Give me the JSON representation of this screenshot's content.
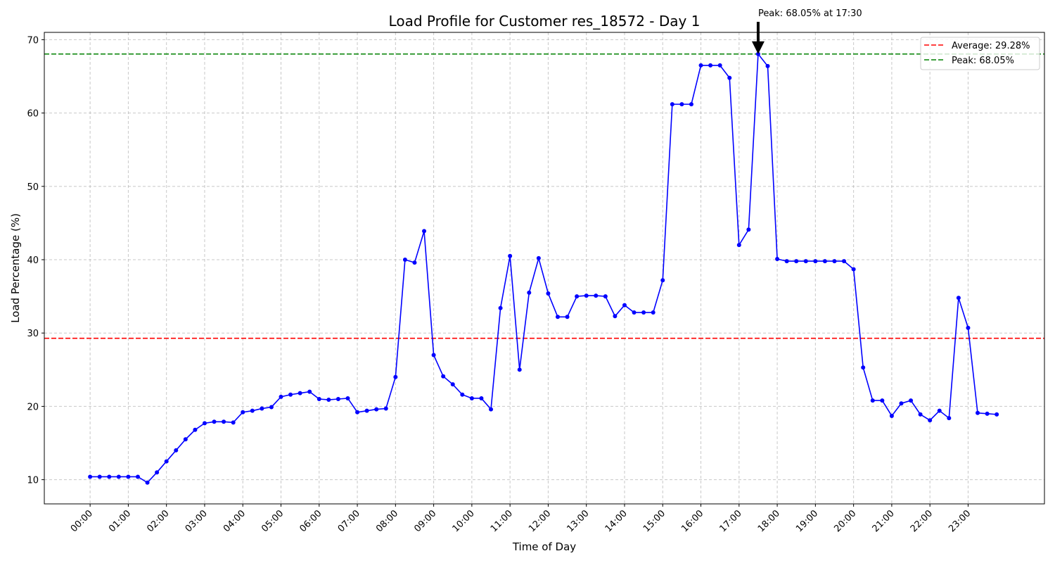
{
  "chart_data": {
    "type": "line",
    "title": "Load Profile for Customer res_18572 - Day 1",
    "xlabel": "Time of Day",
    "ylabel": "Load Percentage (%)",
    "ylim": [
      6.7,
      71.0
    ],
    "xlim": [
      -1.2,
      25.0
    ],
    "grid": true,
    "legend_position": "top-right",
    "yticks": [
      10,
      20,
      30,
      40,
      50,
      60,
      70
    ],
    "xticks": [
      "00:00",
      "01:00",
      "02:00",
      "03:00",
      "04:00",
      "05:00",
      "06:00",
      "07:00",
      "08:00",
      "09:00",
      "10:00",
      "11:00",
      "12:00",
      "13:00",
      "14:00",
      "15:00",
      "16:00",
      "17:00",
      "18:00",
      "19:00",
      "20:00",
      "21:00",
      "22:00",
      "23:00"
    ],
    "series": [
      {
        "name": "",
        "color": "#0000ff",
        "x_step_minutes": 15,
        "values": [
          10.4,
          10.4,
          10.4,
          10.4,
          10.4,
          10.4,
          9.6,
          11.0,
          12.5,
          14.0,
          15.5,
          16.8,
          17.7,
          17.9,
          17.9,
          17.8,
          19.2,
          19.4,
          19.7,
          19.9,
          21.3,
          21.6,
          21.8,
          22.0,
          21.0,
          20.9,
          21.0,
          21.1,
          19.2,
          19.4,
          19.6,
          19.7,
          24.0,
          40.0,
          39.6,
          43.9,
          27.0,
          24.1,
          23.0,
          21.6,
          21.1,
          21.1,
          19.6,
          33.4,
          40.5,
          25.0,
          35.5,
          40.2,
          35.4,
          32.2,
          32.2,
          35.0,
          35.1,
          35.1,
          35.0,
          32.3,
          33.8,
          32.8,
          32.8,
          32.8,
          37.2,
          61.2,
          61.2,
          61.2,
          66.5,
          66.5,
          66.5,
          64.8,
          42.0,
          44.1,
          68.05,
          66.4,
          40.1,
          39.8,
          39.8,
          39.8,
          39.8,
          39.8,
          39.8,
          39.8,
          38.7,
          25.3,
          20.8,
          20.8,
          18.7,
          20.4,
          20.8,
          18.9,
          18.1,
          19.4,
          18.4,
          34.8,
          30.7,
          19.1,
          19.0,
          18.9
        ]
      }
    ],
    "reference_lines": [
      {
        "name": "Average: 29.28%",
        "value": 29.28,
        "color": "#ff0000",
        "style": "dashed"
      },
      {
        "name": "Peak: 68.05%",
        "value": 68.05,
        "color": "#008000",
        "style": "dashed"
      }
    ],
    "annotation": {
      "text": "Peak: 68.05% at 17:30",
      "time": "17:30",
      "value": 68.05
    }
  }
}
